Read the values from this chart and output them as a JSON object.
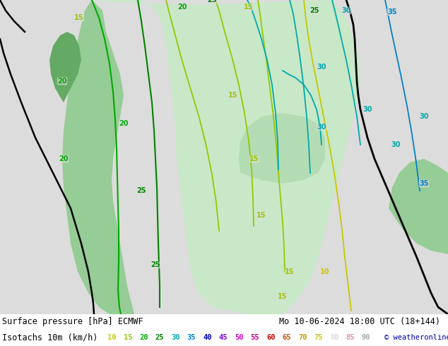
{
  "title_line1": "Surface pressure [hPa] ECMWF",
  "title_line2": "Isotachs 10m (km/h)",
  "date_str": "Mo 10-06-2024 18:00 UTC (18+144)",
  "copyright": "© weatheronline.co.uk",
  "legend_values": [
    10,
    15,
    20,
    25,
    30,
    35,
    40,
    45,
    50,
    55,
    60,
    65,
    70,
    75,
    80,
    85,
    90
  ],
  "legend_colors": [
    "#c8c800",
    "#96c800",
    "#00aa00",
    "#008200",
    "#00aaaa",
    "#0082c8",
    "#0000c8",
    "#8200c8",
    "#c800c8",
    "#c80082",
    "#c80000",
    "#c85000",
    "#c89600",
    "#c8c800",
    "#e6e6e6",
    "#e696aa",
    "#aaaaaa"
  ],
  "bg_color": "#e8e8e8",
  "fig_width": 6.34,
  "fig_height": 4.9,
  "dpi": 100,
  "map_light_gray": "#dcdcdc",
  "map_mid_gray": "#c8c8c8",
  "land_color": "#e8e8e8",
  "sea_color": "#dce8f0",
  "green_fill_light": "#c8f0c8",
  "green_fill_mid": "#96dc96",
  "green_fill_dark": "#64c864",
  "legend_bg": "#ffffff",
  "legend_text_color": "#000000",
  "font_size": 8.5
}
